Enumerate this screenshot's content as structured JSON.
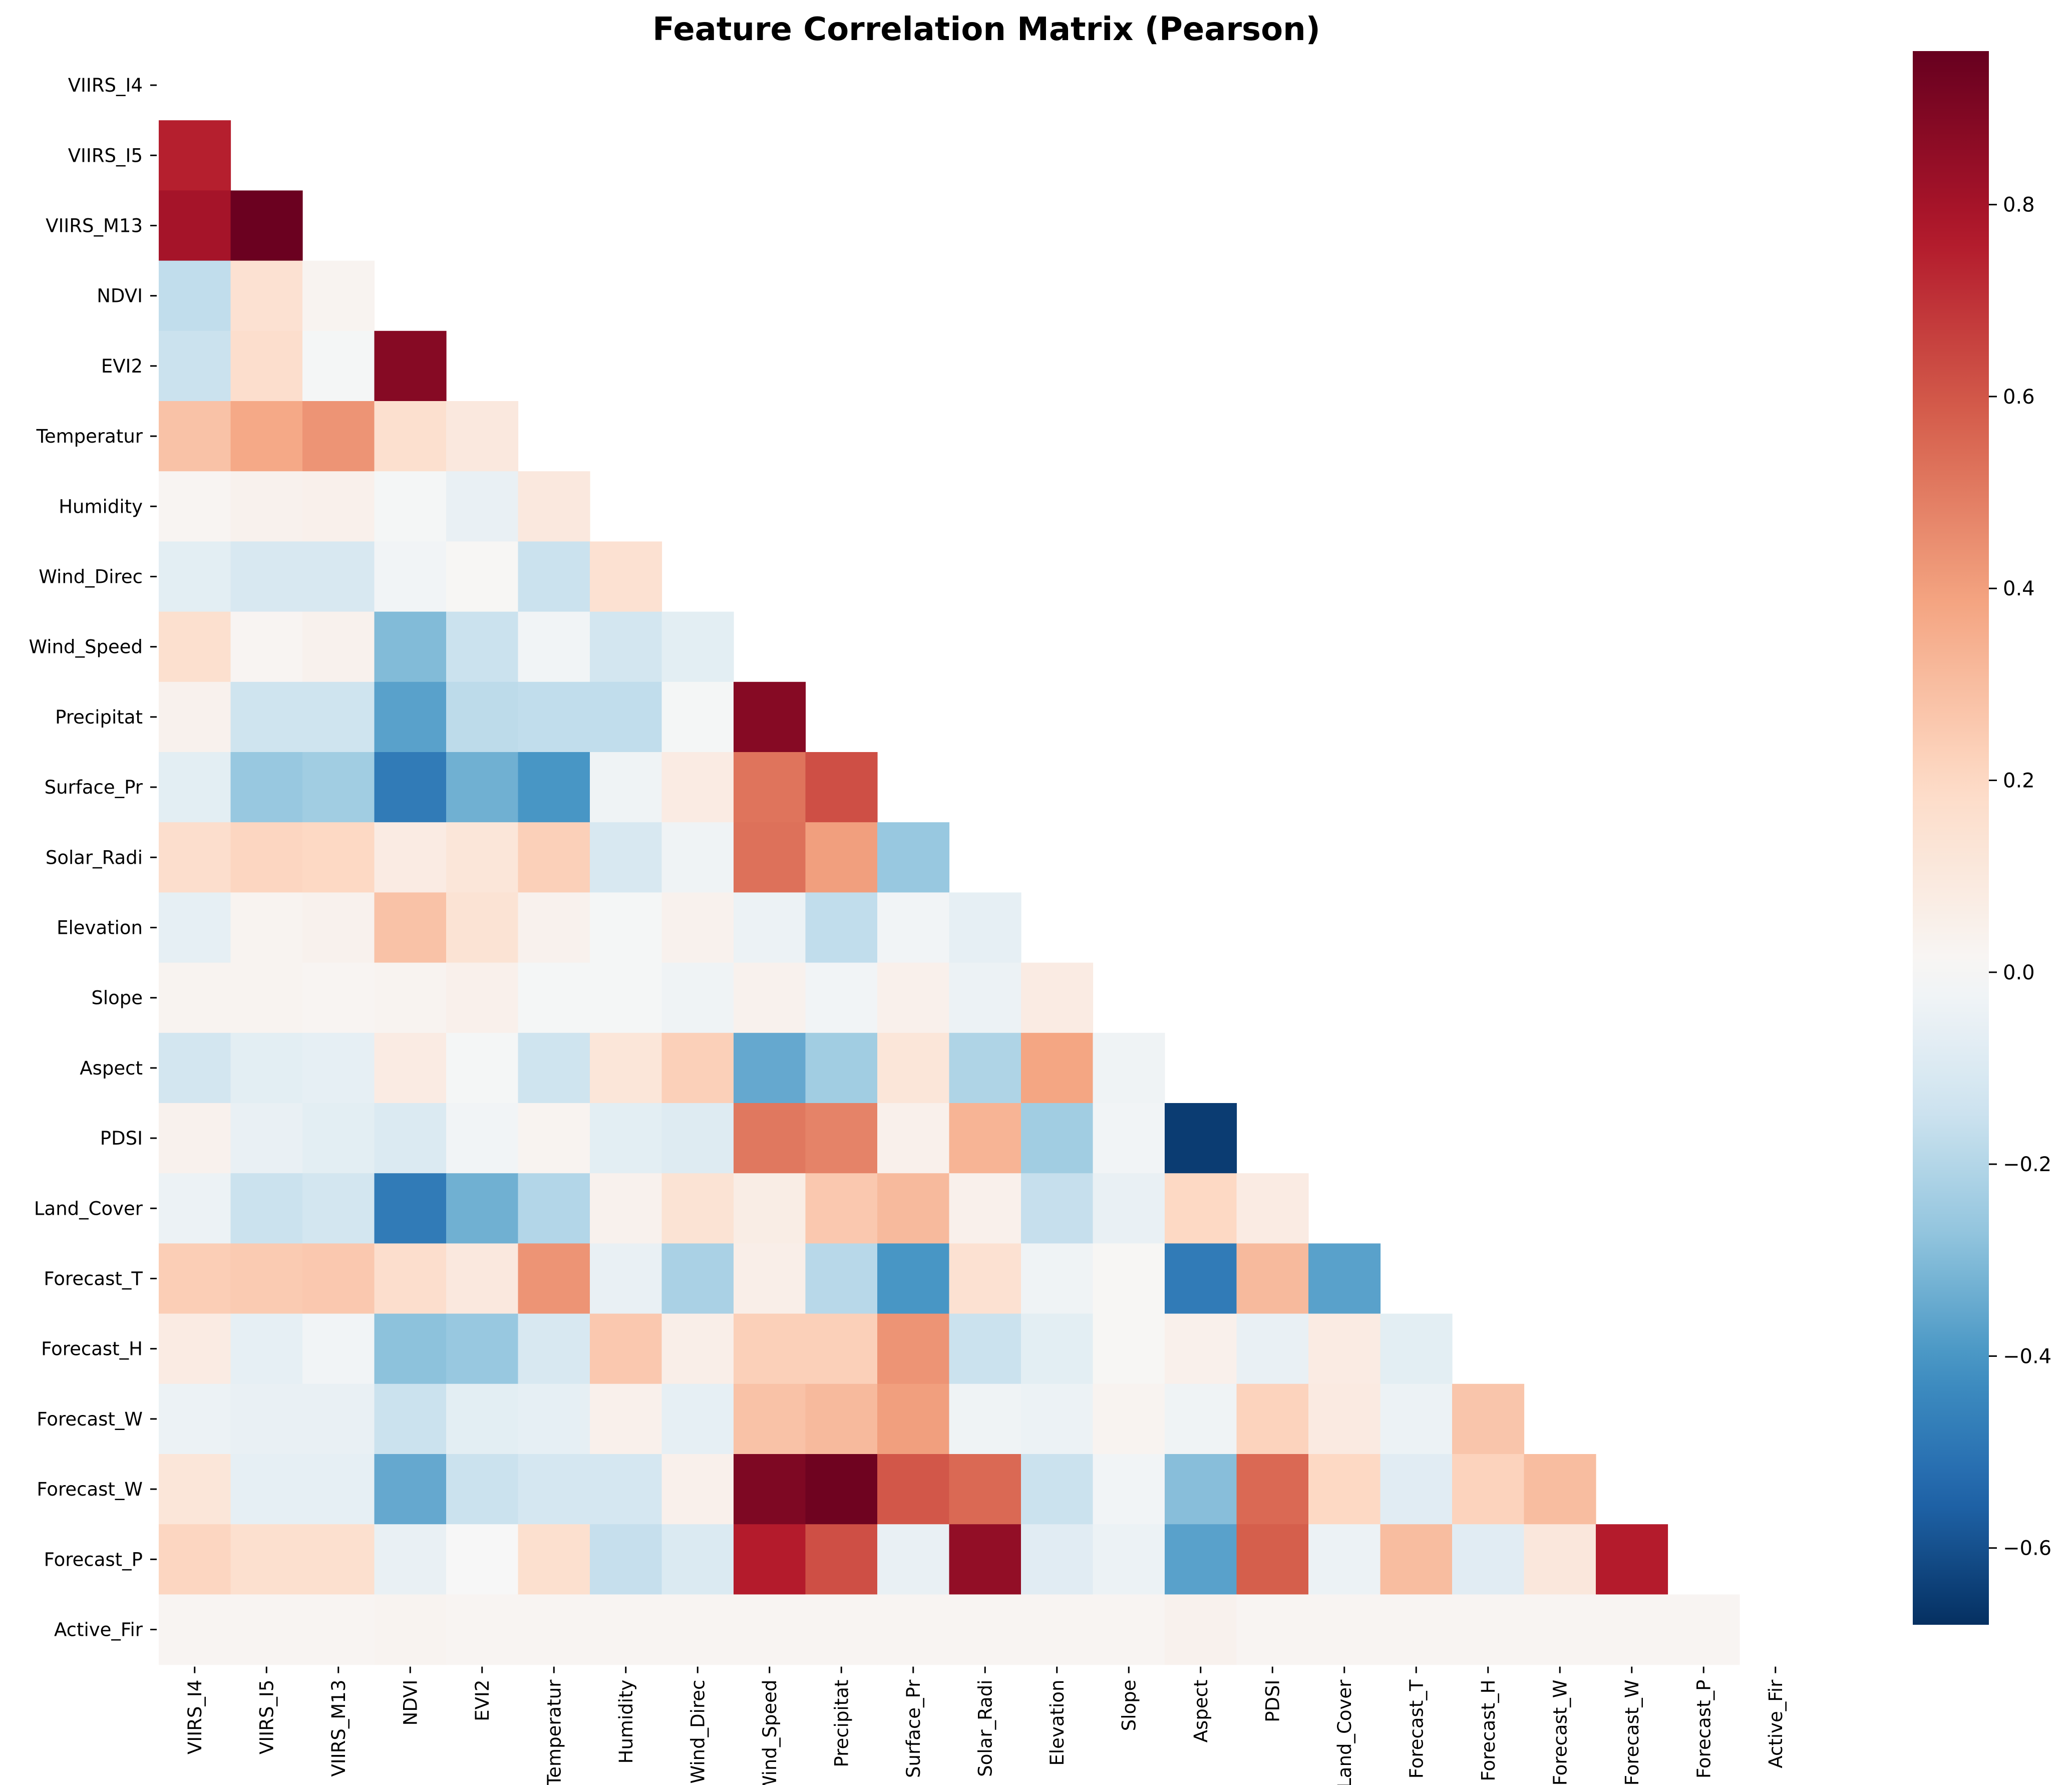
{
  "chart_data": {
    "type": "heatmap",
    "title": "Feature Correlation Matrix (Pearson)",
    "mask": "upper triangle including diagonal",
    "labels": [
      "VIIRS_I4",
      "VIIRS_I5",
      "VIIRS_M13",
      "NDVI",
      "EVI2",
      "Temperatur",
      "Humidity",
      "Wind_Direc",
      "Wind_Speed",
      "Precipitat",
      "Surface_Pr",
      "Solar_Radi",
      "Elevation",
      "Slope",
      "Aspect",
      "PDSI",
      "Land_Cover",
      "Forecast_T",
      "Forecast_H",
      "Forecast_W",
      "Forecast_W",
      "Forecast_P",
      "Active_Fir"
    ],
    "lower_triangle_values": [
      [],
      [
        0.75
      ],
      [
        0.8,
        0.95
      ],
      [
        -0.17,
        0.15,
        0.03
      ],
      [
        -0.15,
        0.17,
        -0.01,
        0.88
      ],
      [
        0.28,
        0.37,
        0.43,
        0.16,
        0.1
      ],
      [
        0.02,
        0.04,
        0.05,
        -0.01,
        -0.05,
        0.1
      ],
      [
        -0.07,
        -0.11,
        -0.11,
        -0.02,
        0.01,
        -0.15,
        0.15
      ],
      [
        0.16,
        0.02,
        0.04,
        -0.3,
        -0.15,
        -0.02,
        -0.13,
        -0.07
      ],
      [
        0.04,
        -0.14,
        -0.14,
        -0.37,
        -0.18,
        -0.17,
        -0.17,
        -0.01,
        0.88
      ],
      [
        -0.07,
        -0.26,
        -0.24,
        -0.48,
        -0.33,
        -0.4,
        -0.03,
        0.08,
        0.52,
        0.62
      ],
      [
        0.17,
        0.21,
        0.2,
        0.08,
        0.12,
        0.23,
        -0.11,
        -0.03,
        0.53,
        0.4,
        -0.26
      ],
      [
        -0.06,
        0.03,
        0.04,
        0.28,
        0.14,
        0.04,
        -0.01,
        0.04,
        -0.04,
        -0.17,
        -0.02,
        -0.06
      ],
      [
        0.03,
        0.03,
        0.02,
        0.03,
        0.05,
        -0.01,
        -0.01,
        -0.03,
        0.04,
        -0.02,
        0.05,
        -0.04,
        0.08
      ],
      [
        -0.13,
        -0.07,
        -0.06,
        0.08,
        -0.01,
        -0.14,
        0.12,
        0.23,
        -0.35,
        -0.24,
        0.12,
        -0.21,
        0.38,
        -0.03
      ],
      [
        0.04,
        -0.05,
        -0.07,
        -0.1,
        -0.02,
        0.03,
        -0.07,
        -0.09,
        0.51,
        0.48,
        0.05,
        0.33,
        -0.24,
        -0.02,
        -0.65
      ],
      [
        -0.04,
        -0.15,
        -0.13,
        -0.48,
        -0.33,
        -0.2,
        0.04,
        0.14,
        0.07,
        0.26,
        0.31,
        0.05,
        -0.16,
        -0.05,
        0.2,
        0.08
      ],
      [
        0.24,
        0.25,
        0.26,
        0.17,
        0.1,
        0.43,
        -0.05,
        -0.22,
        0.06,
        -0.19,
        -0.4,
        0.15,
        -0.03,
        0.01,
        -0.48,
        0.31,
        -0.37
      ],
      [
        0.08,
        -0.06,
        -0.02,
        -0.28,
        -0.26,
        -0.11,
        0.26,
        0.06,
        0.23,
        0.23,
        0.43,
        -0.15,
        -0.07,
        0.01,
        0.05,
        -0.05,
        0.08,
        -0.07
      ],
      [
        -0.04,
        -0.05,
        -0.05,
        -0.15,
        -0.07,
        -0.06,
        0.05,
        -0.06,
        0.28,
        0.31,
        0.4,
        -0.03,
        -0.04,
        0.03,
        -0.03,
        0.22,
        0.09,
        -0.04,
        0.27
      ],
      [
        0.12,
        -0.06,
        -0.06,
        -0.35,
        -0.15,
        -0.12,
        -0.12,
        0.05,
        0.9,
        0.94,
        0.6,
        0.55,
        -0.15,
        -0.02,
        -0.29,
        0.55,
        0.2,
        -0.08,
        0.22,
        0.3
      ],
      [
        0.21,
        0.16,
        0.16,
        -0.05,
        0.0,
        0.16,
        -0.16,
        -0.1,
        0.76,
        0.62,
        -0.05,
        0.85,
        -0.08,
        -0.04,
        -0.37,
        0.58,
        -0.04,
        0.3,
        -0.08,
        0.11,
        0.76
      ],
      [
        0.02,
        0.02,
        0.02,
        0.03,
        0.02,
        0.02,
        0.02,
        0.02,
        0.02,
        0.02,
        0.02,
        0.02,
        0.02,
        0.02,
        0.04,
        0.02,
        0.02,
        0.02,
        0.02,
        0.02,
        0.02,
        0.02
      ]
    ],
    "colormap": "RdBu_r",
    "colorbar_range": [
      -0.68,
      0.96
    ],
    "colorbar_ticks": [
      "−0.6",
      "−0.4",
      "−0.2",
      "0.0",
      "0.2",
      "0.4",
      "0.6",
      "0.8"
    ],
    "colorbar_tick_values": [
      -0.6,
      -0.4,
      -0.2,
      0.0,
      0.2,
      0.4,
      0.6,
      0.8
    ]
  }
}
